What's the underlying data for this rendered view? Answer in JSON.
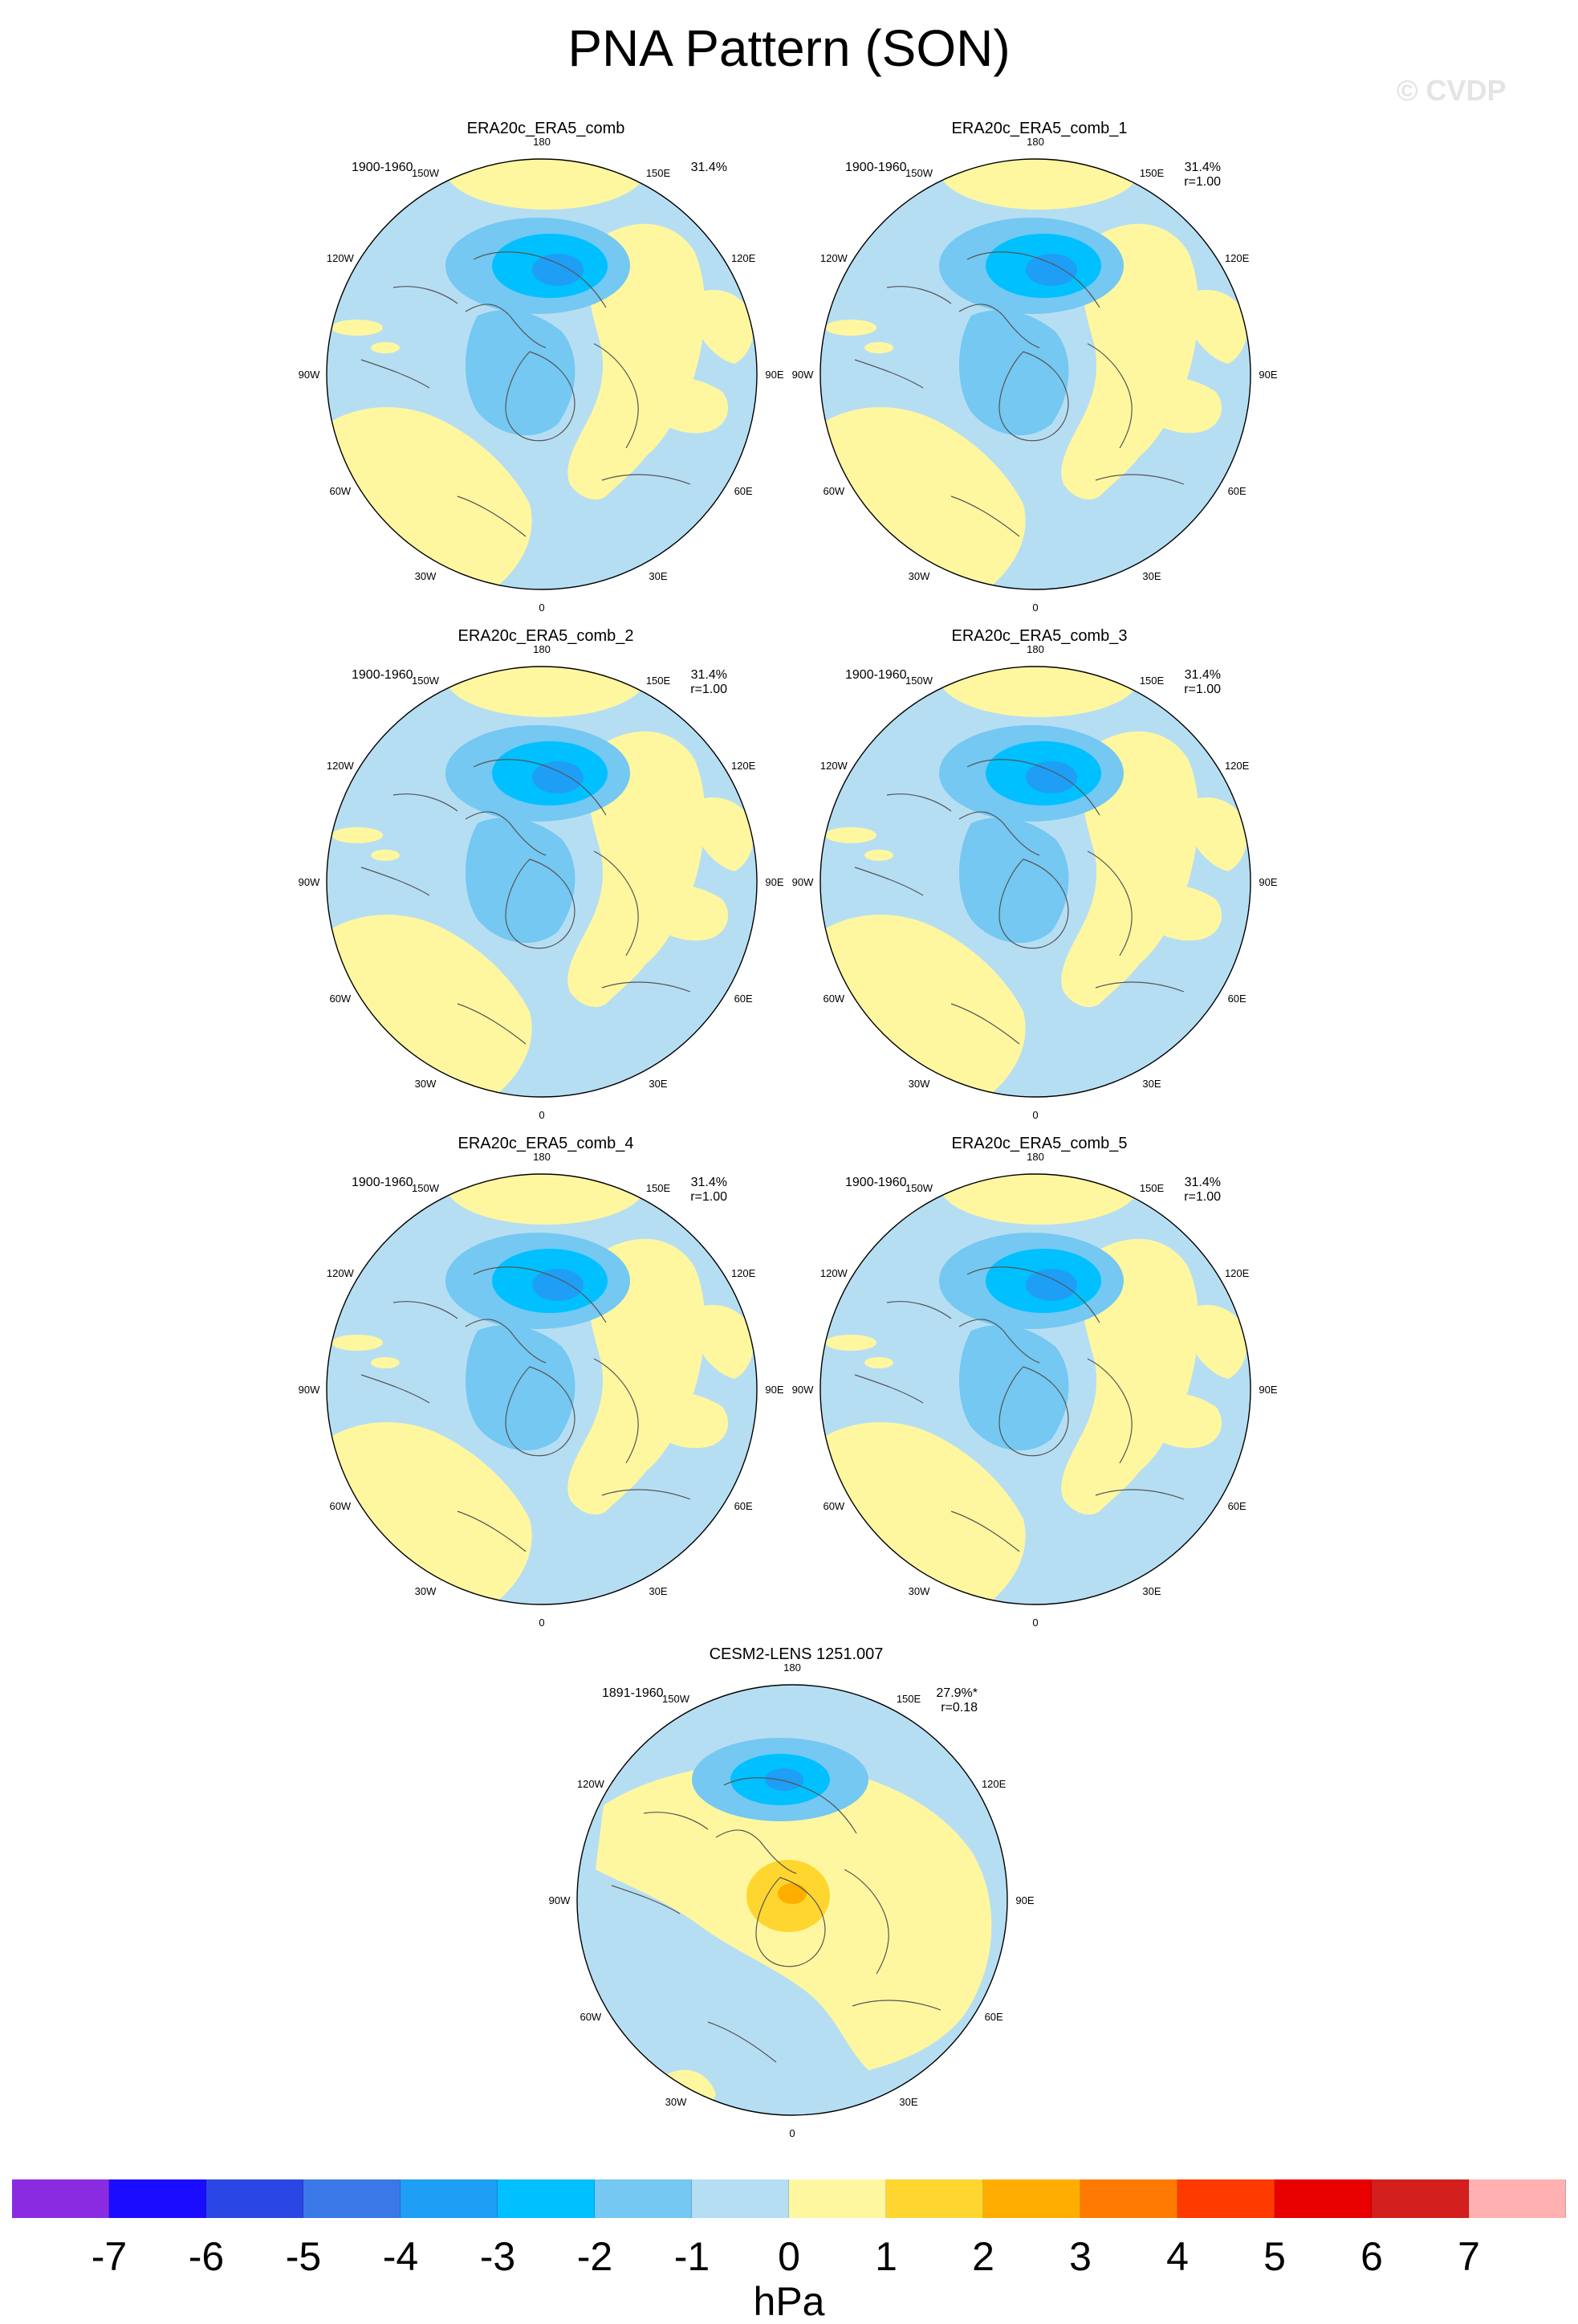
{
  "title": "PNA Pattern (SON)",
  "watermark": "© CVDP",
  "graticule_labels": [
    "180",
    "150E",
    "120E",
    "90E",
    "60E",
    "30E",
    "0",
    "30W",
    "60W",
    "90W",
    "120W",
    "150W"
  ],
  "panels": [
    {
      "id": "p0",
      "title": "ERA20c_ERA5_comb",
      "period": "1900-1960",
      "pct": "31.4%",
      "corr": "",
      "variant": "obs"
    },
    {
      "id": "p1",
      "title": "ERA20c_ERA5_comb_1",
      "period": "1900-1960",
      "pct": "31.4%",
      "corr": "r=1.00",
      "variant": "obs"
    },
    {
      "id": "p2",
      "title": "ERA20c_ERA5_comb_2",
      "period": "1900-1960",
      "pct": "31.4%",
      "corr": "r=1.00",
      "variant": "obs"
    },
    {
      "id": "p3",
      "title": "ERA20c_ERA5_comb_3",
      "period": "1900-1960",
      "pct": "31.4%",
      "corr": "r=1.00",
      "variant": "obs"
    },
    {
      "id": "p4",
      "title": "ERA20c_ERA5_comb_4",
      "period": "1900-1960",
      "pct": "31.4%",
      "corr": "r=1.00",
      "variant": "obs"
    },
    {
      "id": "p5",
      "title": "ERA20c_ERA5_comb_5",
      "period": "1900-1960",
      "pct": "31.4%",
      "corr": "r=1.00",
      "variant": "obs"
    },
    {
      "id": "p6",
      "title": "CESM2-LENS 1251.007",
      "period": "1891-1960",
      "pct": "27.9%*",
      "corr": "r=0.18",
      "variant": "model"
    }
  ],
  "colorbar": {
    "unit": "hPa",
    "ticks": [
      "-7",
      "-6",
      "-5",
      "-4",
      "-3",
      "-2",
      "-1",
      "0",
      "1",
      "2",
      "3",
      "4",
      "5",
      "6",
      "7"
    ],
    "colors": [
      "#8a2be2",
      "#1a0dff",
      "#2a47e6",
      "#3a78e8",
      "#1e9ef5",
      "#00c0ff",
      "#74c8f2",
      "#b6def3",
      "#fff7a0",
      "#ffd630",
      "#ffae00",
      "#ff7a00",
      "#ff3a00",
      "#e80000",
      "#d41f1f",
      "#ffb0b0"
    ]
  },
  "map_colors": {
    "ocean_base": "#b6def3",
    "neg1": "#74c8f2",
    "neg2": "#00c0ff",
    "neg3": "#1e9ef5",
    "pos1": "#fff7a0",
    "pos2": "#ffd630",
    "pos3": "#ffae00",
    "coast": "#555555"
  }
}
